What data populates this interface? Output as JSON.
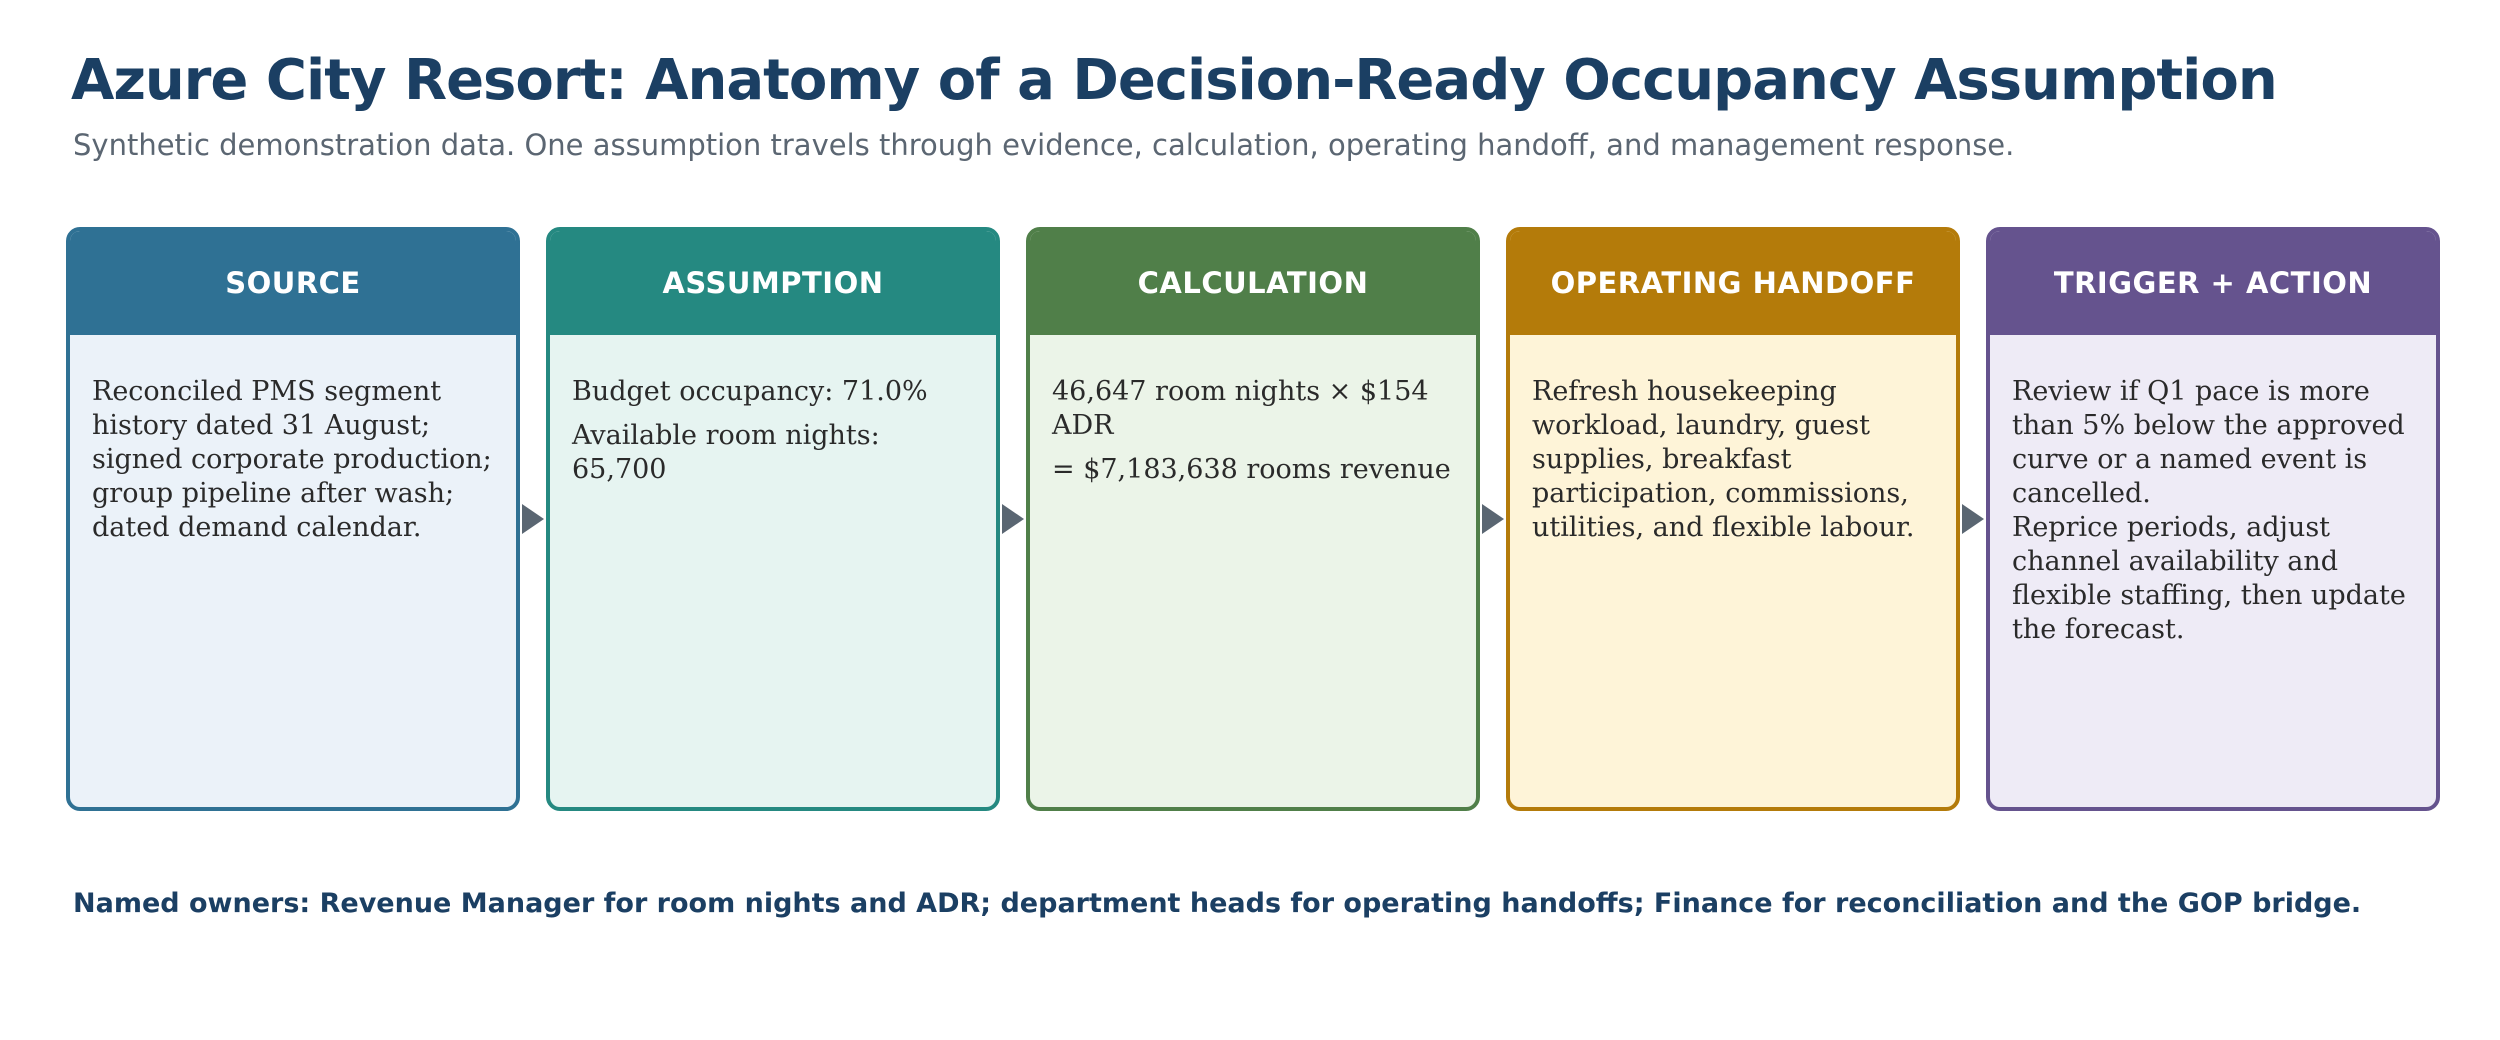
{
  "title": "Azure City Resort: Anatomy of a Decision-Ready Occupancy Assumption",
  "subtitle": "Synthetic demonstration data. One assumption travels through evidence, calculation, operating handoff, and management response.",
  "stages": [
    {
      "heading": "SOURCE",
      "lines": [
        "Reconciled PMS segment history dated 31 August; signed corporate production; group pipeline after wash; dated demand calendar."
      ],
      "colors": {
        "accent": "#2f7194",
        "header_bg": "#2f7194",
        "body_bg": "#ebf2f9"
      }
    },
    {
      "heading": "ASSUMPTION",
      "lines": [
        "Budget occupancy: 71.0%",
        "Available room nights: 65,700"
      ],
      "colors": {
        "accent": "#258981",
        "header_bg": "#258981",
        "body_bg": "#e6f4f1"
      }
    },
    {
      "heading": "CALCULATION",
      "lines": [
        "46,647 room nights × $154 ADR",
        "= $7,183,638 rooms revenue"
      ],
      "colors": {
        "accent": "#507f49",
        "header_bg": "#507f49",
        "body_bg": "#ebf4e8"
      }
    },
    {
      "heading": "OPERATING HANDOFF",
      "lines": [
        "Refresh housekeeping workload, laundry, guest supplies, breakfast participation, commissions, utilities, and flexible labour."
      ],
      "colors": {
        "accent": "#b47b0a",
        "header_bg": "#b47b0a",
        "body_bg": "#fef4d8"
      }
    },
    {
      "heading": "TRIGGER + ACTION",
      "lines": [
        "Review if Q1 pace is more than 5% below the approved curve or a named event is cancelled.",
        "Reprice periods, adjust channel availability and flexible staffing, then update the forecast."
      ],
      "colors": {
        "accent": "#65538e",
        "header_bg": "#65538e",
        "body_bg": "#eeebf6"
      }
    }
  ],
  "footer": "Named owners: Revenue Manager for room nights and ADR; department heads for operating handoffs; Finance for reconciliation and the GOP bridge."
}
